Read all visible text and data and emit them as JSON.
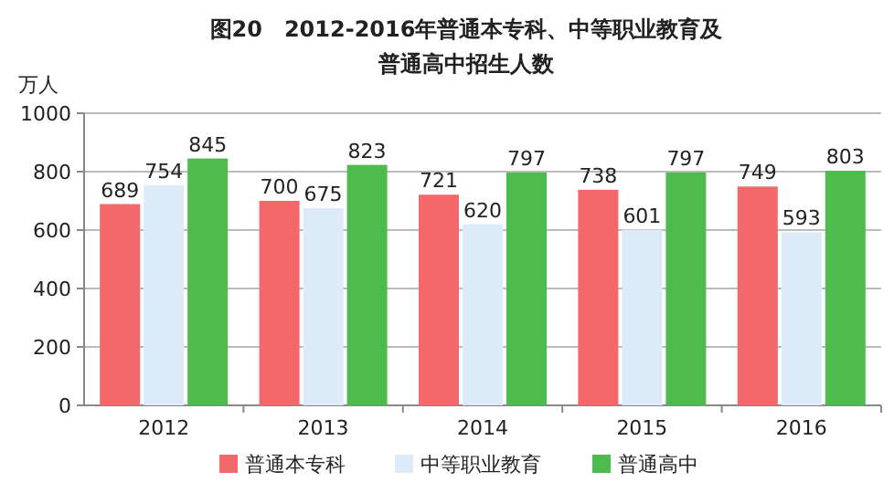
{
  "chart_data": {
    "type": "bar",
    "title": "图20　2012-2016年普通本专科、中等职业教育及普通高中招生人数",
    "ylabel": "万人",
    "categories": [
      "2012",
      "2013",
      "2014",
      "2015",
      "2016"
    ],
    "series": [
      {
        "name": "普通本专科",
        "color": "#f4686c",
        "values": [
          689,
          700,
          721,
          738,
          749
        ]
      },
      {
        "name": "中等职业教育",
        "color": "#dcebf7",
        "values": [
          754,
          675,
          620,
          601,
          593
        ]
      },
      {
        "name": "普通高中",
        "color": "#4dbb4d",
        "values": [
          845,
          823,
          797,
          797,
          803
        ]
      }
    ],
    "ylim": [
      0,
      1000
    ],
    "yticks": [
      0,
      200,
      400,
      600,
      800,
      1000
    ],
    "grid": "y",
    "legend": "bottom",
    "data_labels": true
  }
}
